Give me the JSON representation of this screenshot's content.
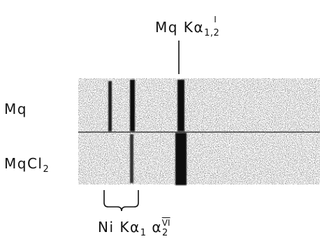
{
  "figure": {
    "top_label": {
      "text": "Mq Kα",
      "subscript": "1,2",
      "superscript": "I"
    },
    "row_labels": {
      "upper": {
        "text": "Mq"
      },
      "lower": {
        "text": "MqCl",
        "subscript": "2"
      }
    },
    "bottom_label": {
      "text": "Ni Kα",
      "sub1": "1",
      "alpha": "α",
      "sub2": "2",
      "superscript": "VI"
    }
  }
}
